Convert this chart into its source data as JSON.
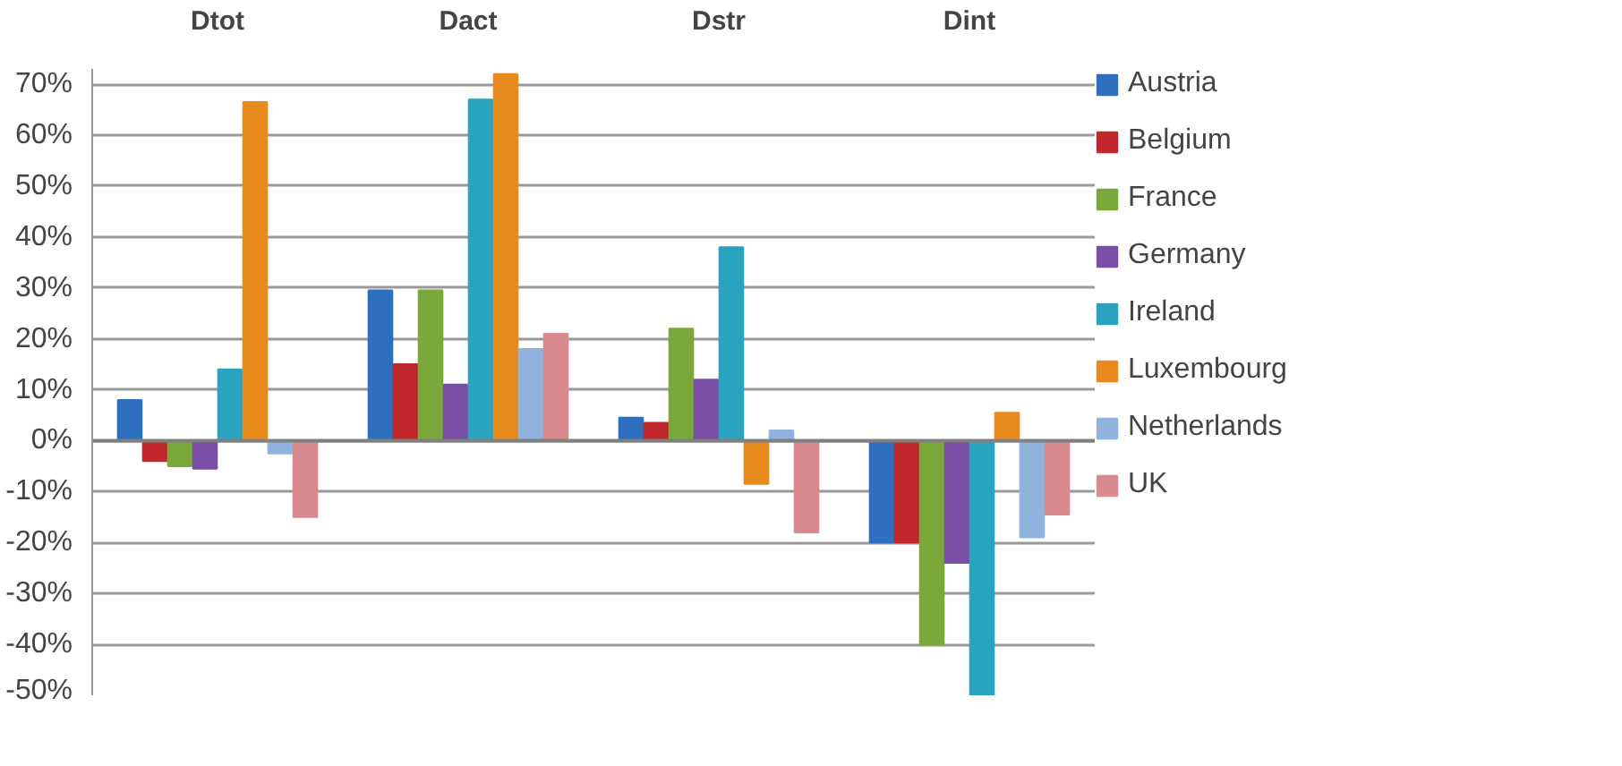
{
  "chart_data": {
    "type": "bar",
    "categories": [
      "Dtot",
      "Dact",
      "Dstr",
      "Dint"
    ],
    "series": [
      {
        "name": "Austria",
        "color": "#2e6fbf",
        "values": [
          0.08,
          0.295,
          0.045,
          -0.2
        ]
      },
      {
        "name": "Belgium",
        "color": "#c0282b",
        "values": [
          -0.04,
          0.15,
          0.035,
          -0.2
        ]
      },
      {
        "name": "France",
        "color": "#7aa83a",
        "values": [
          -0.05,
          0.295,
          0.22,
          -0.4
        ]
      },
      {
        "name": "Germany",
        "color": "#7a4fa8",
        "values": [
          -0.055,
          0.11,
          0.12,
          -0.24
        ]
      },
      {
        "name": "Ireland",
        "color": "#2aa3c0",
        "values": [
          0.14,
          0.67,
          0.38,
          -0.5
        ]
      },
      {
        "name": "Luxembourg",
        "color": "#e98a1e",
        "values": [
          0.665,
          0.72,
          -0.085,
          0.055
        ]
      },
      {
        "name": "Netherlands",
        "color": "#8fb2df",
        "values": [
          -0.025,
          0.18,
          0.02,
          -0.19
        ]
      },
      {
        "name": "UK",
        "color": "#d98a8e",
        "values": [
          -0.15,
          0.21,
          -0.18,
          -0.145
        ]
      }
    ],
    "ylim": [
      -0.5,
      0.73
    ],
    "yticks": [
      {
        "value": -0.5,
        "label": "-50%"
      },
      {
        "value": -0.4,
        "label": "-40%"
      },
      {
        "value": -0.3,
        "label": "-30%"
      },
      {
        "value": -0.2,
        "label": "-20%"
      },
      {
        "value": -0.1,
        "label": "-10%"
      },
      {
        "value": 0,
        "label": "0%"
      },
      {
        "value": 0.1,
        "label": "10%"
      },
      {
        "value": 0.2,
        "label": "20%"
      },
      {
        "value": 0.3,
        "label": "30%"
      },
      {
        "value": 0.4,
        "label": "40%"
      },
      {
        "value": 0.5,
        "label": "50%"
      },
      {
        "value": 0.6,
        "label": "60%"
      },
      {
        "value": 0.7,
        "label": "70%"
      }
    ],
    "grid": "y",
    "legend": "right"
  }
}
